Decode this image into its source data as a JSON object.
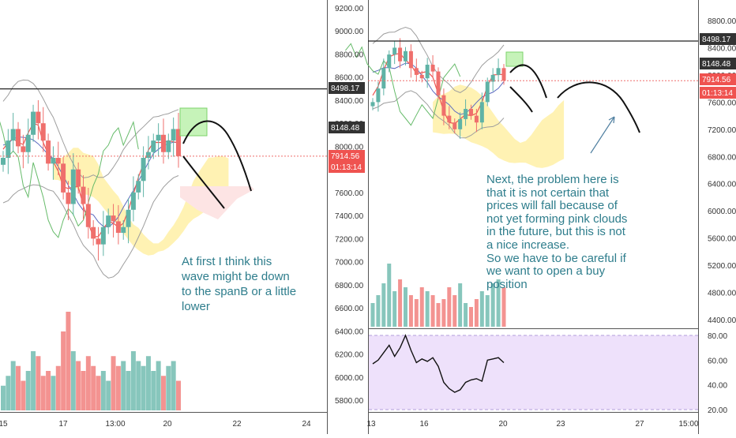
{
  "colors": {
    "up": "#5fb3a6",
    "down": "#ef6f6c",
    "price_label_bg": "#ffffff",
    "price_line": "#222222",
    "dashed": "#ef6f6c",
    "bb": "#9e9e9e",
    "tenkan": "#ef5350",
    "kijun": "#5c6bc0",
    "chikou": "#66bb6a",
    "cloud_up": "#fff2b3",
    "cloud_down": "#fde4e4",
    "annotation_text": "#2e7d8c",
    "rsi_band": "#eee1fb",
    "highlight_box": "#b8f0a8"
  },
  "left": {
    "price_axis": {
      "ticks": [
        "9200.00",
        "9000.00",
        "8800.00",
        "8600.00",
        "8400.00",
        "8200.00",
        "8000.00",
        "7800.00",
        "7600.00",
        "7400.00",
        "7200.00",
        "7000.00",
        "6800.00",
        "6600.00",
        "6400.00",
        "6200.00",
        "6000.00",
        "5800.00"
      ]
    },
    "price_labels": [
      {
        "text": "8498.17",
        "style": "dark"
      },
      {
        "text": "8148.48",
        "style": "dark"
      },
      {
        "text": "7914.56",
        "style": "red"
      },
      {
        "text": "01:13:14",
        "style": "red"
      }
    ],
    "time_axis": [
      "15",
      "17",
      "13:00",
      "20",
      "22",
      "24"
    ],
    "annotation": "At first I think this\nwave might be down\nto the spanB or a little\nlower"
  },
  "right": {
    "price_axis": {
      "ticks": [
        "8800.00",
        "8400.00",
        "8000.00",
        "7600.00",
        "7200.00",
        "6800.00",
        "6400.00",
        "6000.00",
        "5600.00",
        "5200.00",
        "4800.00",
        "4400.00"
      ]
    },
    "price_labels": [
      {
        "text": "8498.17",
        "style": "dark"
      },
      {
        "text": "8148.48",
        "style": "dark"
      },
      {
        "text": "7914.56",
        "style": "red"
      },
      {
        "text": "01:13:14",
        "style": "red"
      }
    ],
    "rsi_axis": [
      "80.00",
      "60.00",
      "40.00",
      "20.00"
    ],
    "time_axis": [
      "13",
      "16",
      "20",
      "23",
      "27",
      "15:00"
    ],
    "annotation": "Next, the problem here is\nthat it is not certain that\nprices will fall because of\nnot yet forming pink clouds\nin the future, but this is not\na nice increase.\nSo we have to be careful if\nwe want to open a buy\nposition"
  },
  "chart_data": [
    {
      "type": "line",
      "panel": "left",
      "indicators": [
        "Bollinger Bands",
        "Ichimoku",
        "Volume"
      ],
      "ylim": [
        5700,
        9280
      ],
      "grid": false,
      "horizontal_levels": [
        8498.17,
        7914.56
      ],
      "last_price": 7914.56,
      "close": [
        7900,
        8050,
        8150,
        8000,
        7950,
        8100,
        8300,
        8200,
        8050,
        7850,
        7900,
        7850,
        7600,
        7500,
        7800,
        7650,
        7500,
        7300,
        7200,
        7150,
        7300,
        7400,
        7350,
        7250,
        7300,
        7450,
        7600,
        7700,
        7900,
        7950,
        8050,
        8100,
        7950,
        8050,
        8150,
        7914.56
      ],
      "volume_relative": [
        0.25,
        0.35,
        0.5,
        0.45,
        0.3,
        0.4,
        0.6,
        0.55,
        0.35,
        0.4,
        0.35,
        0.45,
        0.8,
        1.0,
        0.6,
        0.5,
        0.4,
        0.55,
        0.45,
        0.35,
        0.4,
        0.3,
        0.55,
        0.45,
        0.5,
        0.4,
        0.6,
        0.5,
        0.45,
        0.55,
        0.4,
        0.5,
        0.35,
        0.45,
        0.5,
        0.3
      ]
    },
    {
      "type": "line",
      "panel": "right",
      "indicators": [
        "Bollinger Bands",
        "Ichimoku",
        "Volume",
        "RSI"
      ],
      "ylim": [
        4250,
        9000
      ],
      "grid": false,
      "horizontal_levels": [
        8498.17,
        7914.56
      ],
      "last_price": 7914.56,
      "close": [
        7600,
        7800,
        8100,
        8300,
        8400,
        8200,
        8350,
        8100,
        8000,
        7950,
        8150,
        8050,
        7700,
        7400,
        7300,
        7200,
        7350,
        7500,
        7400,
        7300,
        7600,
        7900,
        8000,
        8100,
        7914.56
      ],
      "volume_relative": [
        0.3,
        0.4,
        0.55,
        0.8,
        0.45,
        0.6,
        0.5,
        0.4,
        0.35,
        0.5,
        0.45,
        0.4,
        0.3,
        0.35,
        0.5,
        0.4,
        0.55,
        0.3,
        0.25,
        0.35,
        0.45,
        0.4,
        0.55,
        0.6,
        0.5
      ],
      "rsi": [
        57,
        60,
        66,
        72,
        63,
        70,
        80,
        68,
        58,
        61,
        59,
        62,
        55,
        42,
        37,
        34,
        36,
        42,
        44,
        45,
        43,
        60,
        61,
        62,
        58
      ]
    }
  ]
}
